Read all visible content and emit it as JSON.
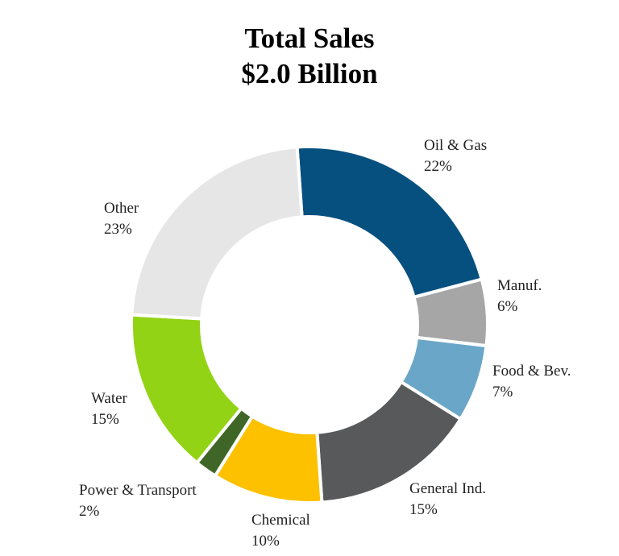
{
  "chart_data": {
    "type": "pie",
    "variant": "donut",
    "title": "Total Sales",
    "subtitle": "$2.0 Billion",
    "slices": [
      {
        "label": "Oil & Gas",
        "value": 22,
        "value_text": "22%",
        "color": "#06507f"
      },
      {
        "label": "Manuf.",
        "value": 6,
        "value_text": "6%",
        "color": "#a6a6a6"
      },
      {
        "label": "Food & Bev.",
        "value": 7,
        "value_text": "7%",
        "color": "#6aa6c8"
      },
      {
        "label": "General Ind.",
        "value": 15,
        "value_text": "15%",
        "color": "#58595b"
      },
      {
        "label": "Chemical",
        "value": 10,
        "value_text": "10%",
        "color": "#fdc100"
      },
      {
        "label": "Power & Transport",
        "value": 2,
        "value_text": "2%",
        "color": "#3f6627"
      },
      {
        "label": "Water",
        "value": 15,
        "value_text": "15%",
        "color": "#92d315"
      },
      {
        "label": "Other",
        "value": 23,
        "value_text": "23%",
        "color": "#e6e6e6"
      }
    ]
  }
}
